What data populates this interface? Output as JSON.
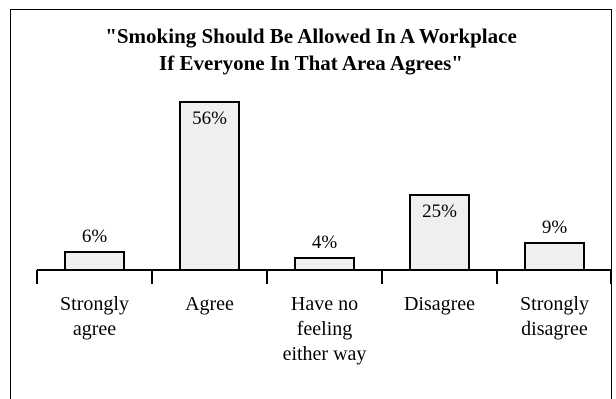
{
  "chart_data": {
    "type": "bar",
    "title_lines": [
      "\"Smoking Should Be Allowed In A Workplace",
      "If Everyone In That Area Agrees\""
    ],
    "categories": [
      [
        "Strongly",
        "agree"
      ],
      [
        "Agree"
      ],
      [
        "Have no",
        "feeling",
        "either way"
      ],
      [
        "Disagree"
      ],
      [
        "Strongly",
        "disagree"
      ]
    ],
    "values": [
      6,
      56,
      4,
      25,
      9
    ],
    "value_labels": [
      "6%",
      "56%",
      "4%",
      "25%",
      "9%"
    ],
    "ylim": [
      0,
      60
    ],
    "bar_fill": "#efefef",
    "bar_stroke": "#000000"
  }
}
